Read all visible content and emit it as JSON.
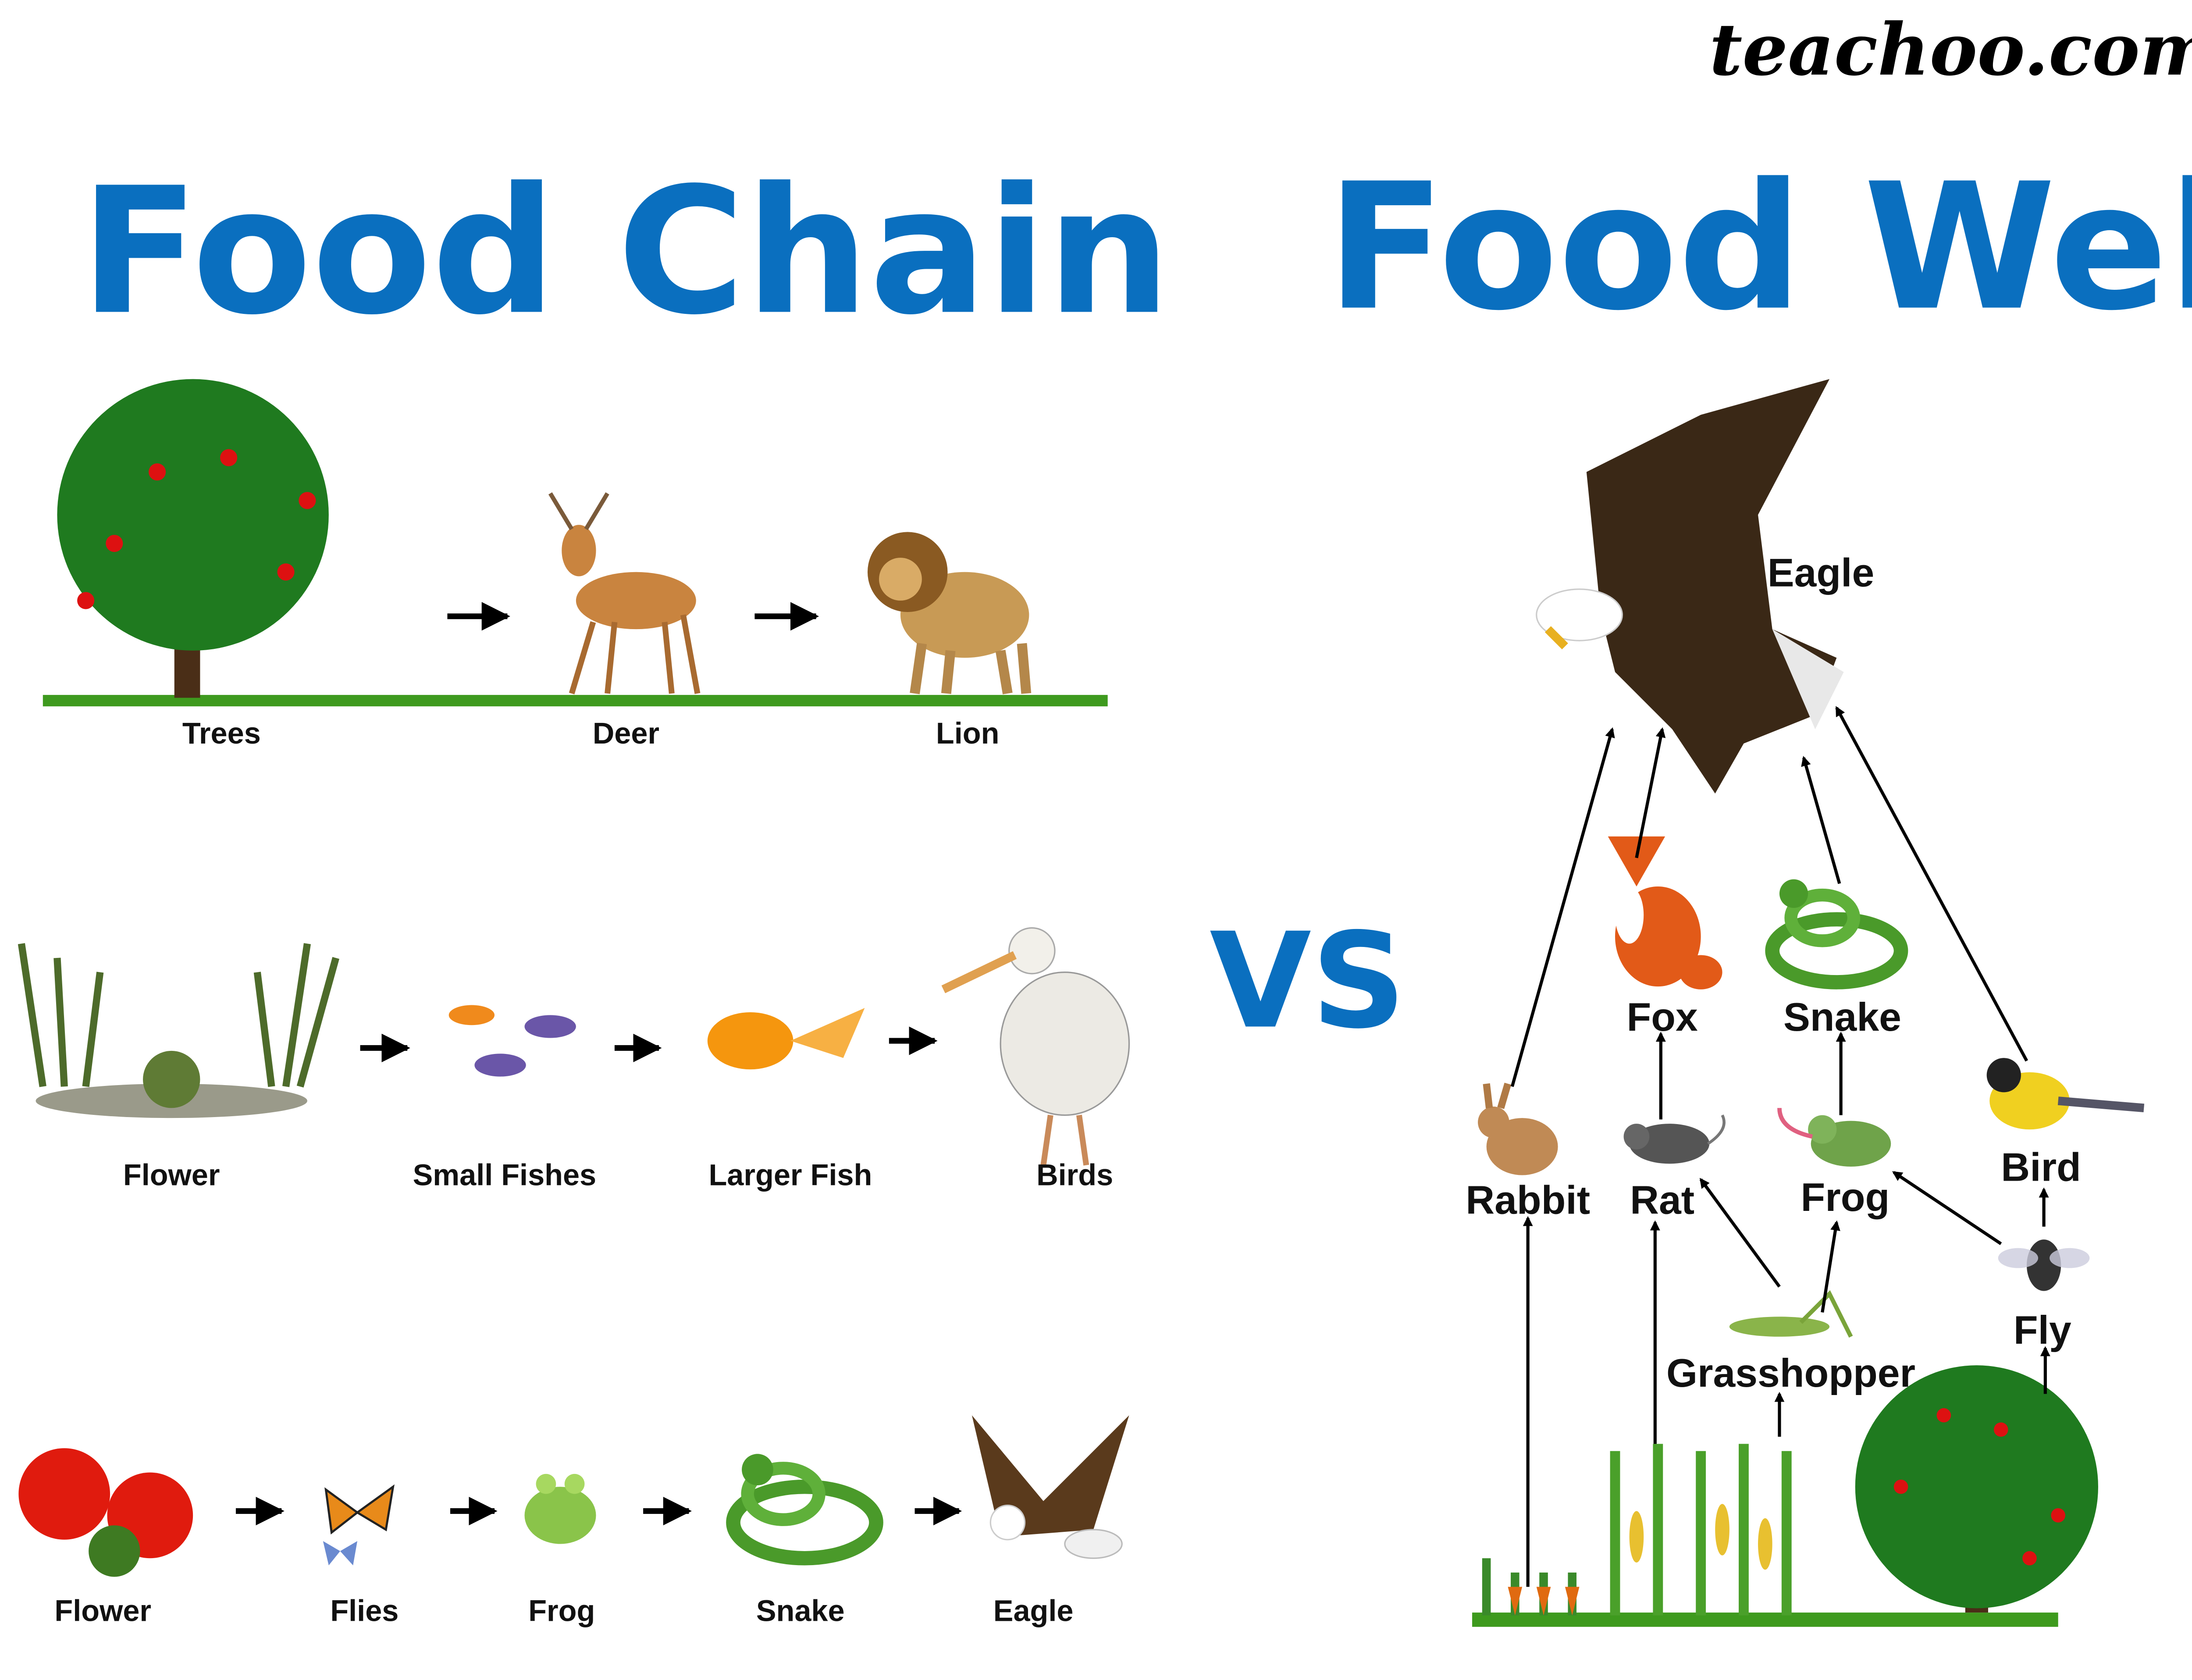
{
  "logo": "teachoo.com",
  "watermark": "teachoo.com",
  "colors": {
    "title": "#0A6FBF",
    "arrow": "#000000",
    "ground": "#3E9A1E",
    "watermark": "#CDEFF3"
  },
  "food_chain": {
    "title": "Food Chain",
    "chains": [
      {
        "labels": [
          "Trees",
          "Deer",
          "Lion"
        ]
      },
      {
        "labels": [
          "Flower",
          "Small Fishes",
          "Larger Fish",
          "Birds"
        ]
      },
      {
        "labels": [
          "Flower",
          "Flies",
          "Frog",
          "Snake",
          "Eagle"
        ]
      }
    ]
  },
  "vs": "VS",
  "food_web": {
    "title": "Food Web",
    "nodes": {
      "eagle": "Eagle",
      "fox": "Fox",
      "snake": "Snake",
      "rabbit": "Rabbit",
      "rat": "Rat",
      "frog": "Frog",
      "bird": "Bird",
      "fly": "Fly",
      "grasshopper": "Grasshopper"
    },
    "links": [
      [
        "rabbit",
        "eagle"
      ],
      [
        "fox",
        "eagle"
      ],
      [
        "snake",
        "eagle"
      ],
      [
        "bird",
        "eagle"
      ],
      [
        "rat",
        "fox"
      ],
      [
        "frog",
        "snake"
      ],
      [
        "grasshopper",
        "rat"
      ],
      [
        "grasshopper",
        "frog"
      ],
      [
        "fly",
        "frog"
      ],
      [
        "fly",
        "bird"
      ],
      [
        "plants",
        "rabbit"
      ],
      [
        "corn",
        "rat"
      ],
      [
        "corn",
        "grasshopper"
      ],
      [
        "tree",
        "fly"
      ]
    ]
  }
}
